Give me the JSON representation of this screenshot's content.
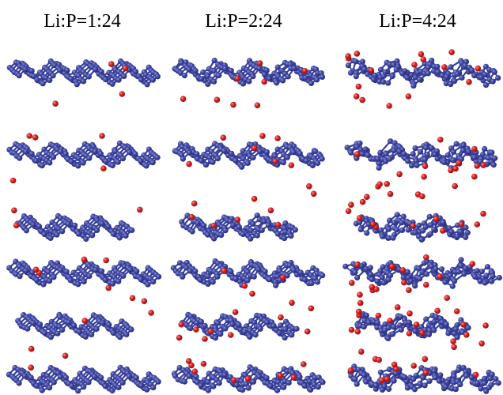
{
  "headers": [
    "Li:P=1:24",
    "Li:P=2:24",
    "Li:P=4:24"
  ],
  "colors": {
    "phosphorus": "#3d45a0",
    "phosphorus_dark": "#262c78",
    "bond": "#3a4199",
    "lithium": "#d42020",
    "lithium_dark": "#8e1010",
    "background": "#ffffff"
  },
  "panels": {
    "rows": 3,
    "columns": 3,
    "chains_per_row": [
      1,
      2,
      3
    ],
    "lithium_ratio": [
      1,
      2,
      4
    ]
  }
}
